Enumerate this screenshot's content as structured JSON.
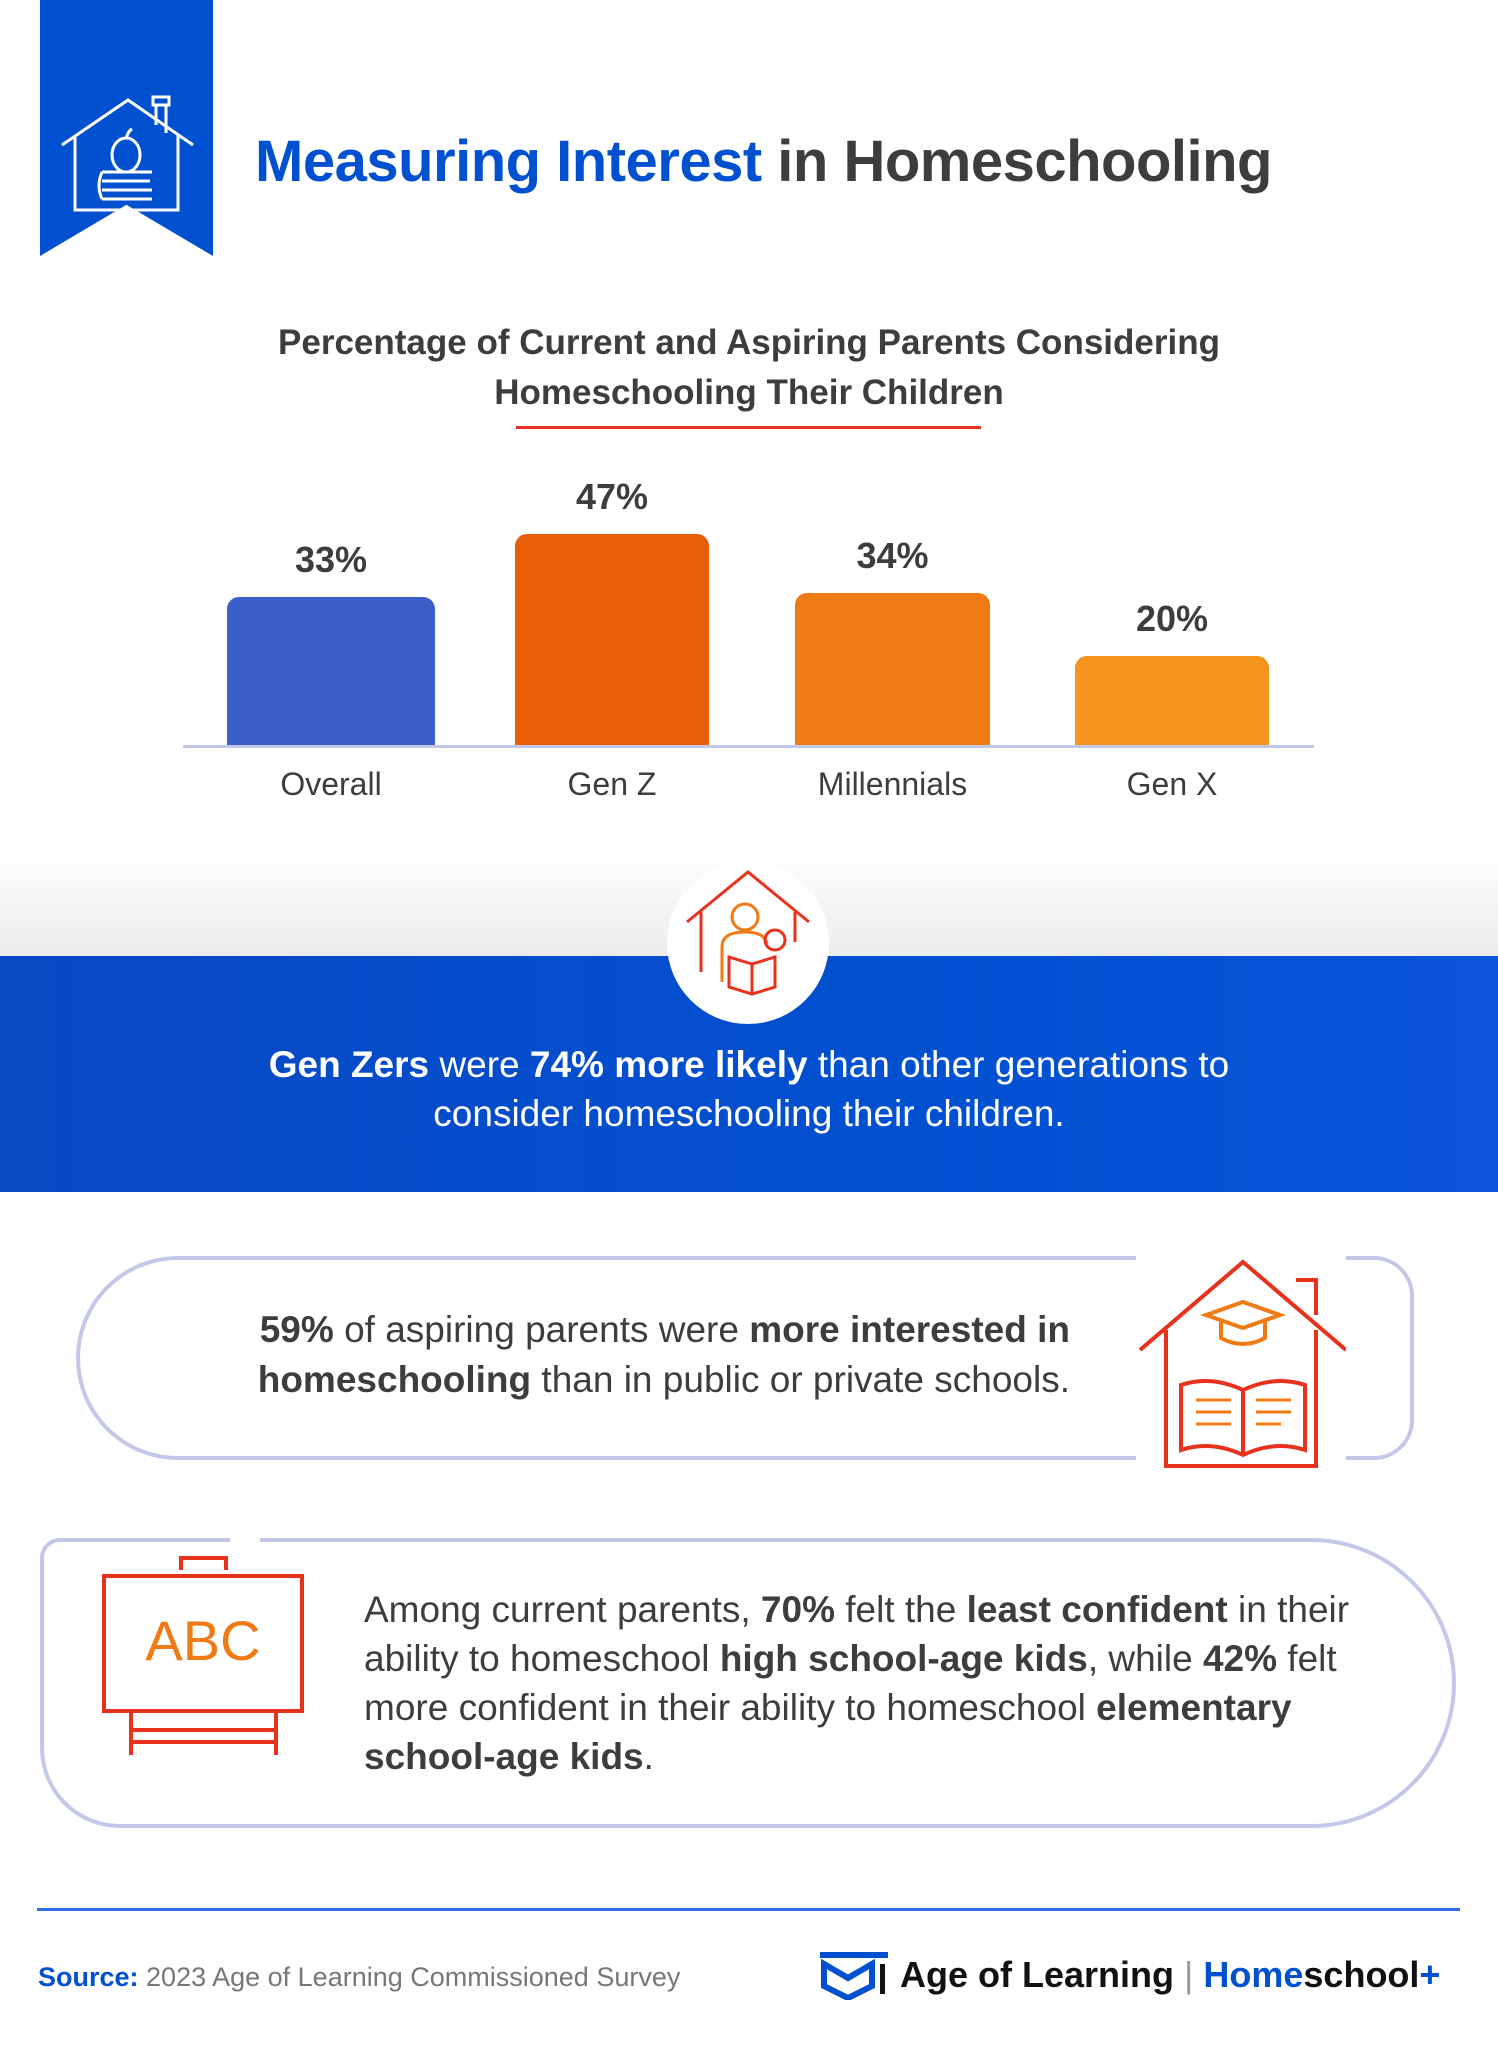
{
  "header": {
    "title_highlight": "Measuring Interest",
    "title_rest": " in Homeschooling",
    "icon": "house-apple-books-icon",
    "accent": "#0050d0"
  },
  "chart_data": {
    "type": "bar",
    "title": "Percentage of Current and Aspiring Parents Considering Homeschooling Their Children",
    "categories": [
      "Overall",
      "Gen Z",
      "Millennials",
      "Gen X"
    ],
    "values": [
      33,
      47,
      34,
      20
    ],
    "labels": [
      "33%",
      "47%",
      "34%",
      "20%"
    ],
    "colors": [
      "#3a5fc8",
      "#e85d0a",
      "#f07a14",
      "#f5951f"
    ],
    "ylim": [
      0,
      50
    ],
    "grid": false
  },
  "highlight": {
    "icon": "house-parent-child-reading-icon",
    "bold1": "Gen Zers",
    "t1": " were ",
    "bold2": "74% more likely",
    "t2": " than other generations to consider homeschooling their children."
  },
  "stat1": {
    "icon": "house-graduation-book-icon",
    "bold1": "59%",
    "t1": " of aspiring parents were ",
    "bold2": "more interested in homeschooling",
    "t2": " than in public or private schools."
  },
  "stat2": {
    "icon": "abc-chalkboard-icon",
    "board_text": "ABC",
    "t1": "Among current parents, ",
    "bold1": "70%",
    "t2": " felt the ",
    "bold2": "least confident",
    "t3": " in their ability to homeschool ",
    "bold3": "high school-age kids",
    "t4": ", while ",
    "bold4": "42%",
    "t5": " felt more confident in their ability to homeschool ",
    "bold5": "elementary school-age kids",
    "t6": "."
  },
  "footer": {
    "source_label": "Source:",
    "source_text": " 2023 Age of Learning Commissioned Survey",
    "logo_brand": "Age of Learning",
    "logo_product_home": "Home",
    "logo_product_rest": "school",
    "logo_plus": "+"
  }
}
